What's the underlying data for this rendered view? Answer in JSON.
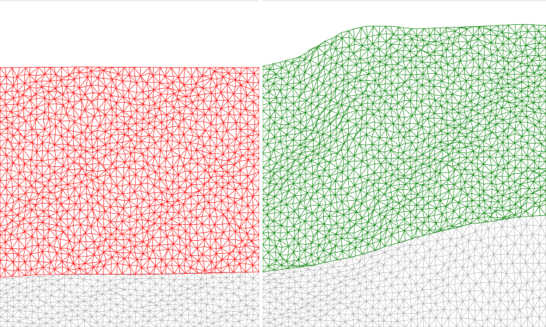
{
  "scene": {
    "type": "terrain-wireframe-comparison",
    "background_color": "#ffffff",
    "top_rule_color": "#eeeeee",
    "divider_color": "#ffffff",
    "panels": [
      {
        "id": "left-terrain-mesh",
        "mesh_color": "#ff0000",
        "ground_color": "#a6a6a6"
      },
      {
        "id": "right-terrain-mesh",
        "mesh_color": "#008000",
        "ground_color": "#a6a6a6"
      }
    ]
  }
}
